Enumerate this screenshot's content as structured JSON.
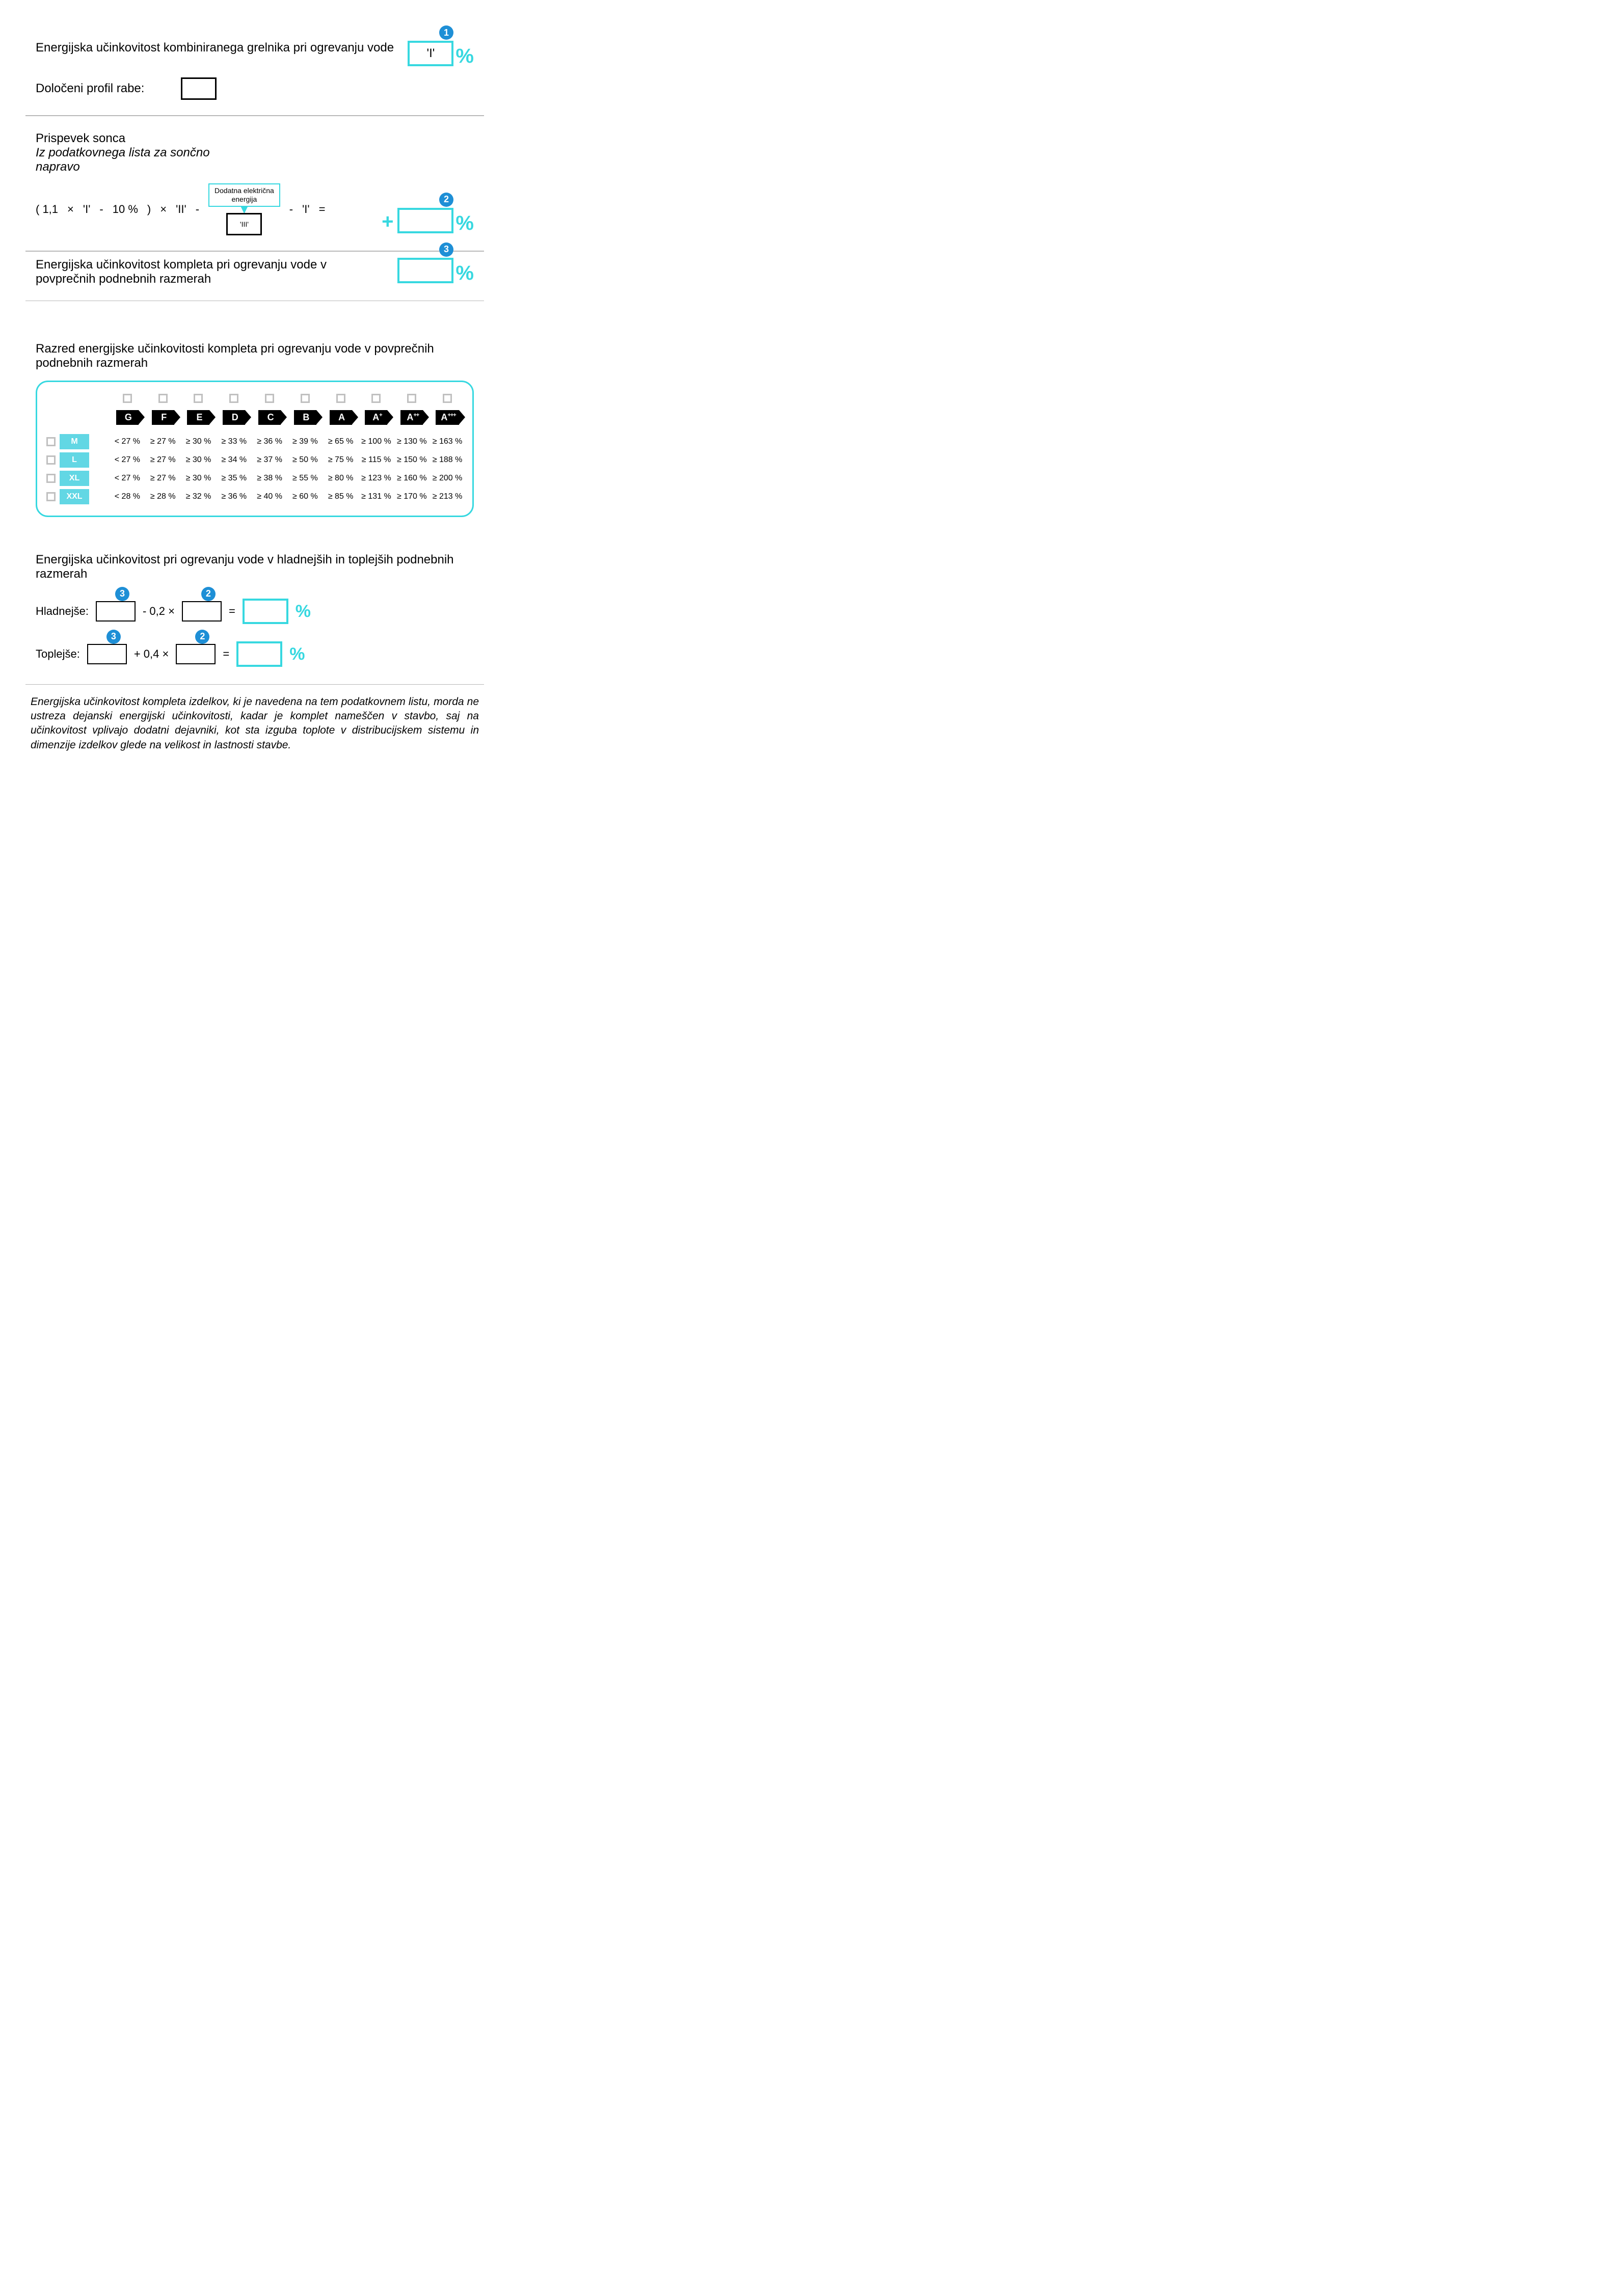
{
  "section1": {
    "title": "Energijska učinkovitost kombiniranega grelnika pri ogrevanju vode",
    "profile_label": "Določeni profil rabe:",
    "box1_value": "'I'",
    "badge1": "1"
  },
  "section2": {
    "title": "Prispevek sonca",
    "subtitle": "Iz podatkovnega lista za sončno napravo",
    "callout_line1": "Dodatna električna",
    "callout_line2": "energija",
    "f": {
      "open": "( 1,1",
      "times1": "×",
      "v1": "'I'",
      "minus1": "-",
      "v2": "10 %",
      "close": ")",
      "times2": "×",
      "v3": "'II'",
      "minus2": "-",
      "box": "'III'",
      "minus3": "-",
      "v4": "'I'",
      "eq": "="
    },
    "badge2": "2"
  },
  "section3": {
    "title": "Energijska učinkovitost kompleta pri ogrevanju vode v povprečnih podnebnih razmerah",
    "badge3": "3"
  },
  "cls": {
    "heading": "Razred energijske učinkovitosti kompleta pri ogrevanju vode v povprečnih podnebnih razmerah",
    "classes": [
      "G",
      "F",
      "E",
      "D",
      "C",
      "B",
      "A",
      "A+",
      "A++",
      "A+++"
    ],
    "profiles": [
      "M",
      "L",
      "XL",
      "XXL"
    ],
    "cells": [
      [
        "< 27 %",
        "≥ 27 %",
        "≥ 30 %",
        "≥ 33 %",
        "≥ 36 %",
        "≥ 39 %",
        "≥ 65 %",
        "≥ 100 %",
        "≥ 130 %",
        "≥ 163 %"
      ],
      [
        "< 27 %",
        "≥ 27 %",
        "≥ 30 %",
        "≥ 34 %",
        "≥ 37 %",
        "≥ 50 %",
        "≥ 75 %",
        "≥ 115 %",
        "≥ 150 %",
        "≥ 188 %"
      ],
      [
        "< 27 %",
        "≥ 27 %",
        "≥ 30 %",
        "≥ 35 %",
        "≥ 38 %",
        "≥ 55 %",
        "≥ 80 %",
        "≥ 123 %",
        "≥ 160 %",
        "≥ 200 %"
      ],
      [
        "< 28 %",
        "≥ 28 %",
        "≥ 32 %",
        "≥ 36 %",
        "≥ 40 %",
        "≥ 60 %",
        "≥ 85 %",
        "≥ 131 %",
        "≥ 170 %",
        "≥ 213 %"
      ]
    ]
  },
  "climate": {
    "heading": "Energijska učinkovitost pri ogrevanju vode v hladnejših in toplejših podnebnih razmerah",
    "cold_label": "Hladnejše:",
    "cold_op": "-   0,2   ×",
    "warm_label": "Toplejše:",
    "warm_op": "+   0,4   ×",
    "eq": "=",
    "b3": "3",
    "b2": "2"
  },
  "footnote": "Energijska učinkovitost kompleta izdelkov, ki je navedena na tem podatkovnem listu, morda ne ustreza dejanski energijski učinkovitosti, kadar je komplet nameščen v stavbo, saj na učinkovitost vplivajo dodatni dejavniki, kot sta izguba toplote v distribucijskem sistemu in dimenzije izdelkov glede na velikost in lastnosti stavbe."
}
